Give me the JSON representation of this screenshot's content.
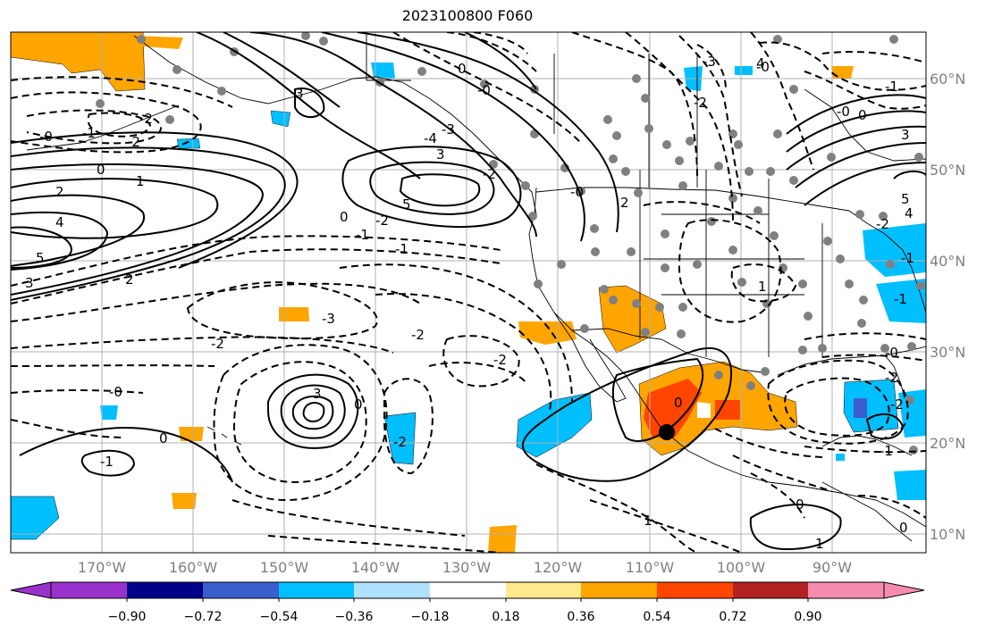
{
  "title": "2023100800 F060",
  "lat_labels": [
    "60°N",
    "50°N",
    "40°N",
    "30°N",
    "20°N",
    "10°N"
  ],
  "lon_labels": [
    "170°W",
    "160°W",
    "150°W",
    "140°W",
    "130°W",
    "120°W",
    "110°W",
    "100°W",
    "90°W"
  ],
  "colorbar": {
    "ticks": [
      "−0.90",
      "−0.72",
      "−0.54",
      "−0.36",
      "−0.18",
      "0.18",
      "0.36",
      "0.54",
      "0.72",
      "0.90"
    ],
    "colors": [
      "#9932cc",
      "#00008b",
      "#3a5fcd",
      "#00bfff",
      "#b0e2ff",
      "#ffffff",
      "#fce98c",
      "#ffa500",
      "#ff4500",
      "#b22222",
      "#f58cb0"
    ]
  },
  "contour_labels": {
    "l0": "0",
    "l1": "0",
    "l2": "2",
    "l3": "4",
    "l4": "5",
    "l5": "3",
    "l6": "-2",
    "l7": "-1",
    "l8": "-2",
    "l9": "3",
    "l10": "3",
    "l11": "-0",
    "l12": "-0",
    "l13": "-2",
    "l14": "-1",
    "l15": "1",
    "l16": "2",
    "l17": "-3",
    "l18": "-2",
    "l19": "-2",
    "l20": "-0",
    "l21": "0",
    "l22": "-1",
    "l23": "3",
    "l24": "0",
    "l25": "-2",
    "l26": "0",
    "l27": "-1",
    "l28": "-2",
    "l29": "-0",
    "l30": "0",
    "l31": "1",
    "l32": "5",
    "l33": "-3",
    "l34": "-2",
    "l35": "-0",
    "l36": "0",
    "l37": "-1",
    "l38": "-0",
    "l39": "0",
    "l40": "-2",
    "l41": "-2",
    "l42": "-1",
    "l43": "-0",
    "l44": "1",
    "l45": "0",
    "l46": "1",
    "l47": "-2",
    "l48": "-1",
    "l49": "3",
    "l50": "4",
    "l51": "5",
    "l52": "4",
    "l53": "2",
    "l54": "-2",
    "l55": "-4",
    "l56": "-3",
    "l57": "-1"
  },
  "storm_marker": "black-dot"
}
